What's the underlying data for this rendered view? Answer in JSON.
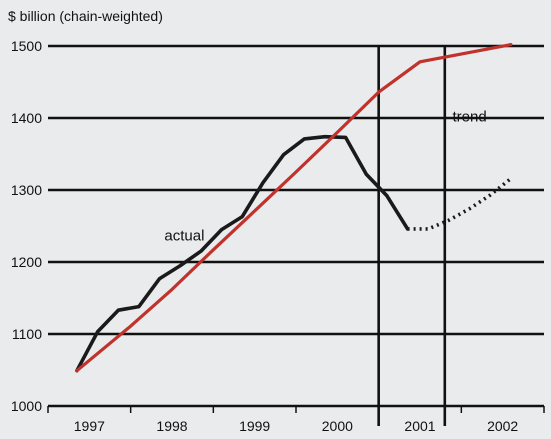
{
  "chart_data": {
    "type": "line",
    "ylabel": "$ billion (chain-weighted)",
    "ylim": [
      1000,
      1500
    ],
    "yticks": [
      1000,
      1100,
      1200,
      1300,
      1400,
      1500
    ],
    "xlim": [
      1997.0,
      2003.0
    ],
    "xtick_labels": [
      {
        "label": "1997",
        "x": 1997.5
      },
      {
        "label": "1998",
        "x": 1998.5
      },
      {
        "label": "1999",
        "x": 1999.5
      },
      {
        "label": "2000",
        "x": 2000.5
      },
      {
        "label": "2001",
        "x": 2001.5
      },
      {
        "label": "2002",
        "x": 2002.5
      }
    ],
    "grid": "horizontal",
    "vertical_markers": [
      2001.0,
      2001.8
    ],
    "series": [
      {
        "name": "actual",
        "style": "solid",
        "color": "#1a1a1a",
        "points": [
          [
            1997.35,
            1049
          ],
          [
            1997.6,
            1103
          ],
          [
            1997.85,
            1133
          ],
          [
            1998.1,
            1138
          ],
          [
            1998.35,
            1177
          ],
          [
            1998.6,
            1195
          ],
          [
            1998.85,
            1215
          ],
          [
            1999.1,
            1245
          ],
          [
            1999.35,
            1263
          ],
          [
            1999.6,
            1310
          ],
          [
            1999.85,
            1349
          ],
          [
            2000.1,
            1371
          ],
          [
            2000.35,
            1374
          ],
          [
            2000.6,
            1373
          ],
          [
            2000.85,
            1322
          ],
          [
            2001.1,
            1292
          ],
          [
            2001.35,
            1246
          ]
        ]
      },
      {
        "name": "",
        "style": "dotted",
        "color": "#1a1a1a",
        "points": [
          [
            2001.35,
            1246
          ],
          [
            2001.6,
            1246
          ],
          [
            2001.85,
            1258
          ],
          [
            2002.1,
            1274
          ],
          [
            2002.35,
            1293
          ],
          [
            2002.6,
            1316
          ]
        ]
      },
      {
        "name": "trend",
        "style": "solid",
        "color": "#c0322b",
        "points": [
          [
            1997.35,
            1049
          ],
          [
            1998.0,
            1111
          ],
          [
            1998.5,
            1162
          ],
          [
            1999.0,
            1217
          ],
          [
            1999.5,
            1271
          ],
          [
            2000.0,
            1325
          ],
          [
            2000.5,
            1380
          ],
          [
            2001.0,
            1436
          ],
          [
            2001.5,
            1478
          ],
          [
            2002.6,
            1502
          ]
        ]
      }
    ],
    "annotations": [
      {
        "text": "actual",
        "x": 1998.65,
        "y": 1230
      },
      {
        "text": "trend",
        "x": 2002.1,
        "y": 1395
      }
    ]
  }
}
